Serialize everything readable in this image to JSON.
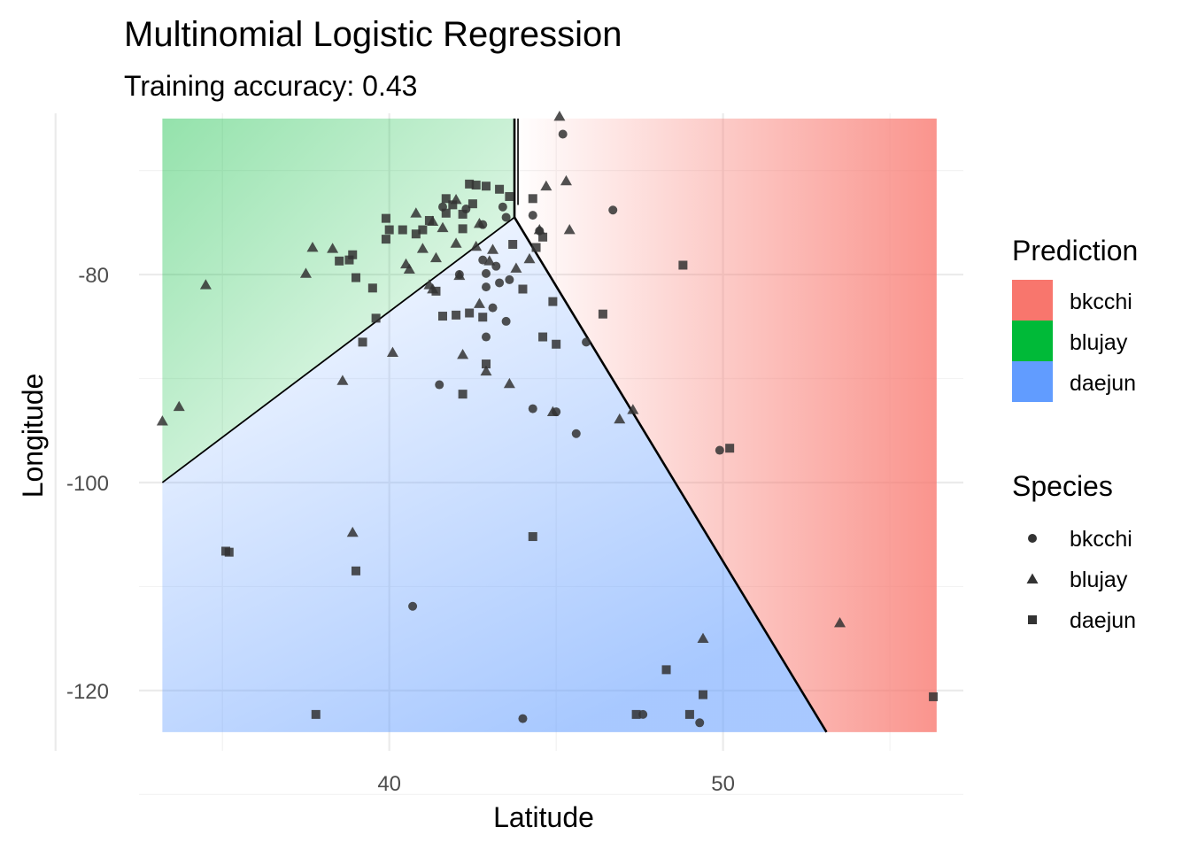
{
  "chart_data": {
    "type": "scatter",
    "title": "Multinomial Logistic Regression",
    "subtitle": "Training accuracy: 0.43",
    "xlabel": "Latitude",
    "ylabel": "Longitude",
    "xlim": [
      32.5,
      57.2
    ],
    "ylim": [
      -125.8,
      -64.5
    ],
    "x_ticks": [
      40,
      50
    ],
    "y_ticks": [
      -80,
      -100,
      -120
    ],
    "region_extent": {
      "x": [
        33.2,
        56.4
      ],
      "y": [
        -124,
        -65
      ]
    },
    "grid": true,
    "decision_boundary": {
      "junction": [
        43.75,
        -74.5
      ],
      "to_top": [
        43.75,
        -65
      ],
      "to_left": [
        33.2,
        -100
      ],
      "to_bottom_right": [
        53.1,
        -124
      ]
    },
    "legends": {
      "prediction": {
        "title": "Prediction",
        "items": [
          {
            "label": "bkcchi",
            "color": "#F8766D"
          },
          {
            "label": "blujay",
            "color": "#00BA38"
          },
          {
            "label": "daejun",
            "color": "#619CFF"
          }
        ]
      },
      "species": {
        "title": "Species",
        "items": [
          {
            "label": "bkcchi",
            "shape": "circle"
          },
          {
            "label": "blujay",
            "shape": "triangle"
          },
          {
            "label": "daejun",
            "shape": "square"
          }
        ]
      }
    },
    "series": [
      {
        "name": "bkcchi",
        "shape": "circle",
        "points": [
          [
            45.2,
            -66.5
          ],
          [
            41.6,
            -73.5
          ],
          [
            42.3,
            -73.7
          ],
          [
            43.4,
            -73.5
          ],
          [
            43.5,
            -74.5
          ],
          [
            42.8,
            -75.2
          ],
          [
            44.5,
            -75.8
          ],
          [
            44.3,
            -74.3
          ],
          [
            46.7,
            -73.8
          ],
          [
            42.8,
            -78.6
          ],
          [
            42.1,
            -80.0
          ],
          [
            43.2,
            -79.2
          ],
          [
            42.9,
            -79.9
          ],
          [
            43.6,
            -80.5
          ],
          [
            42.9,
            -81.2
          ],
          [
            43.3,
            -80.8
          ],
          [
            43.1,
            -83.2
          ],
          [
            43.5,
            -84.5
          ],
          [
            42.9,
            -86.0
          ],
          [
            45.9,
            -86.5
          ],
          [
            41.5,
            -90.6
          ],
          [
            44.3,
            -92.9
          ],
          [
            45.0,
            -93.2
          ],
          [
            45.6,
            -95.3
          ],
          [
            49.9,
            -96.9
          ],
          [
            40.7,
            -111.9
          ],
          [
            44.0,
            -122.7
          ],
          [
            47.6,
            -122.3
          ],
          [
            49.3,
            -123.1
          ]
        ]
      },
      {
        "name": "blujay",
        "shape": "triangle",
        "points": [
          [
            45.1,
            -64.8
          ],
          [
            44.7,
            -71.5
          ],
          [
            45.3,
            -71.0
          ],
          [
            42.0,
            -72.8
          ],
          [
            41.3,
            -74.9
          ],
          [
            40.8,
            -74.1
          ],
          [
            42.7,
            -75.1
          ],
          [
            44.5,
            -75.7
          ],
          [
            45.4,
            -75.7
          ],
          [
            41.6,
            -75.5
          ],
          [
            42.6,
            -77.3
          ],
          [
            42.0,
            -77.0
          ],
          [
            43.1,
            -77.6
          ],
          [
            43.0,
            -78.7
          ],
          [
            44.2,
            -78.5
          ],
          [
            43.8,
            -79.4
          ],
          [
            41.0,
            -77.5
          ],
          [
            41.4,
            -78.4
          ],
          [
            37.7,
            -77.4
          ],
          [
            38.3,
            -77.5
          ],
          [
            40.5,
            -79.0
          ],
          [
            40.6,
            -79.5
          ],
          [
            37.5,
            -79.9
          ],
          [
            42.1,
            -80.1
          ],
          [
            41.2,
            -81.0
          ],
          [
            42.7,
            -82.8
          ],
          [
            41.3,
            -81.4
          ],
          [
            40.1,
            -87.5
          ],
          [
            42.2,
            -87.7
          ],
          [
            42.9,
            -89.3
          ],
          [
            38.6,
            -90.2
          ],
          [
            43.6,
            -90.5
          ],
          [
            44.9,
            -93.2
          ],
          [
            47.3,
            -93.0
          ],
          [
            46.9,
            -93.9
          ],
          [
            34.5,
            -81.0
          ],
          [
            33.2,
            -94.1
          ],
          [
            33.7,
            -92.7
          ],
          [
            38.9,
            -104.8
          ],
          [
            53.5,
            -113.5
          ],
          [
            49.4,
            -115.0
          ]
        ]
      },
      {
        "name": "daejun",
        "shape": "square",
        "points": [
          [
            42.4,
            -71.3
          ],
          [
            42.6,
            -71.4
          ],
          [
            42.9,
            -71.5
          ],
          [
            43.3,
            -71.8
          ],
          [
            44.3,
            -72.7
          ],
          [
            41.7,
            -72.7
          ],
          [
            42.5,
            -73.2
          ],
          [
            41.9,
            -73.3
          ],
          [
            42.2,
            -74.2
          ],
          [
            41.7,
            -74.1
          ],
          [
            41.2,
            -74.8
          ],
          [
            43.6,
            -72.5
          ],
          [
            41.0,
            -75.7
          ],
          [
            40.8,
            -76.1
          ],
          [
            40.4,
            -75.7
          ],
          [
            39.9,
            -74.6
          ],
          [
            40.0,
            -75.7
          ],
          [
            39.9,
            -76.6
          ],
          [
            44.4,
            -77.4
          ],
          [
            44.6,
            -76.4
          ],
          [
            43.7,
            -77.1
          ],
          [
            42.2,
            -75.6
          ],
          [
            38.9,
            -78.1
          ],
          [
            38.8,
            -78.6
          ],
          [
            38.5,
            -78.7
          ],
          [
            39.0,
            -80.3
          ],
          [
            39.5,
            -81.3
          ],
          [
            41.4,
            -81.6
          ],
          [
            44.0,
            -81.4
          ],
          [
            44.9,
            -82.6
          ],
          [
            48.8,
            -79.1
          ],
          [
            46.4,
            -83.8
          ],
          [
            42.4,
            -83.7
          ],
          [
            42.0,
            -83.9
          ],
          [
            41.6,
            -84.0
          ],
          [
            42.8,
            -84.1
          ],
          [
            39.6,
            -84.2
          ],
          [
            44.6,
            -86.0
          ],
          [
            45.0,
            -86.7
          ],
          [
            39.2,
            -86.5
          ],
          [
            42.9,
            -88.6
          ],
          [
            42.2,
            -91.5
          ],
          [
            35.1,
            -106.6
          ],
          [
            35.2,
            -106.7
          ],
          [
            39.0,
            -108.5
          ],
          [
            44.3,
            -105.2
          ],
          [
            50.2,
            -96.7
          ],
          [
            37.8,
            -122.3
          ],
          [
            47.4,
            -122.3
          ],
          [
            48.3,
            -118.0
          ],
          [
            49.0,
            -122.3
          ],
          [
            49.4,
            -120.4
          ],
          [
            56.3,
            -120.6
          ]
        ]
      }
    ]
  }
}
